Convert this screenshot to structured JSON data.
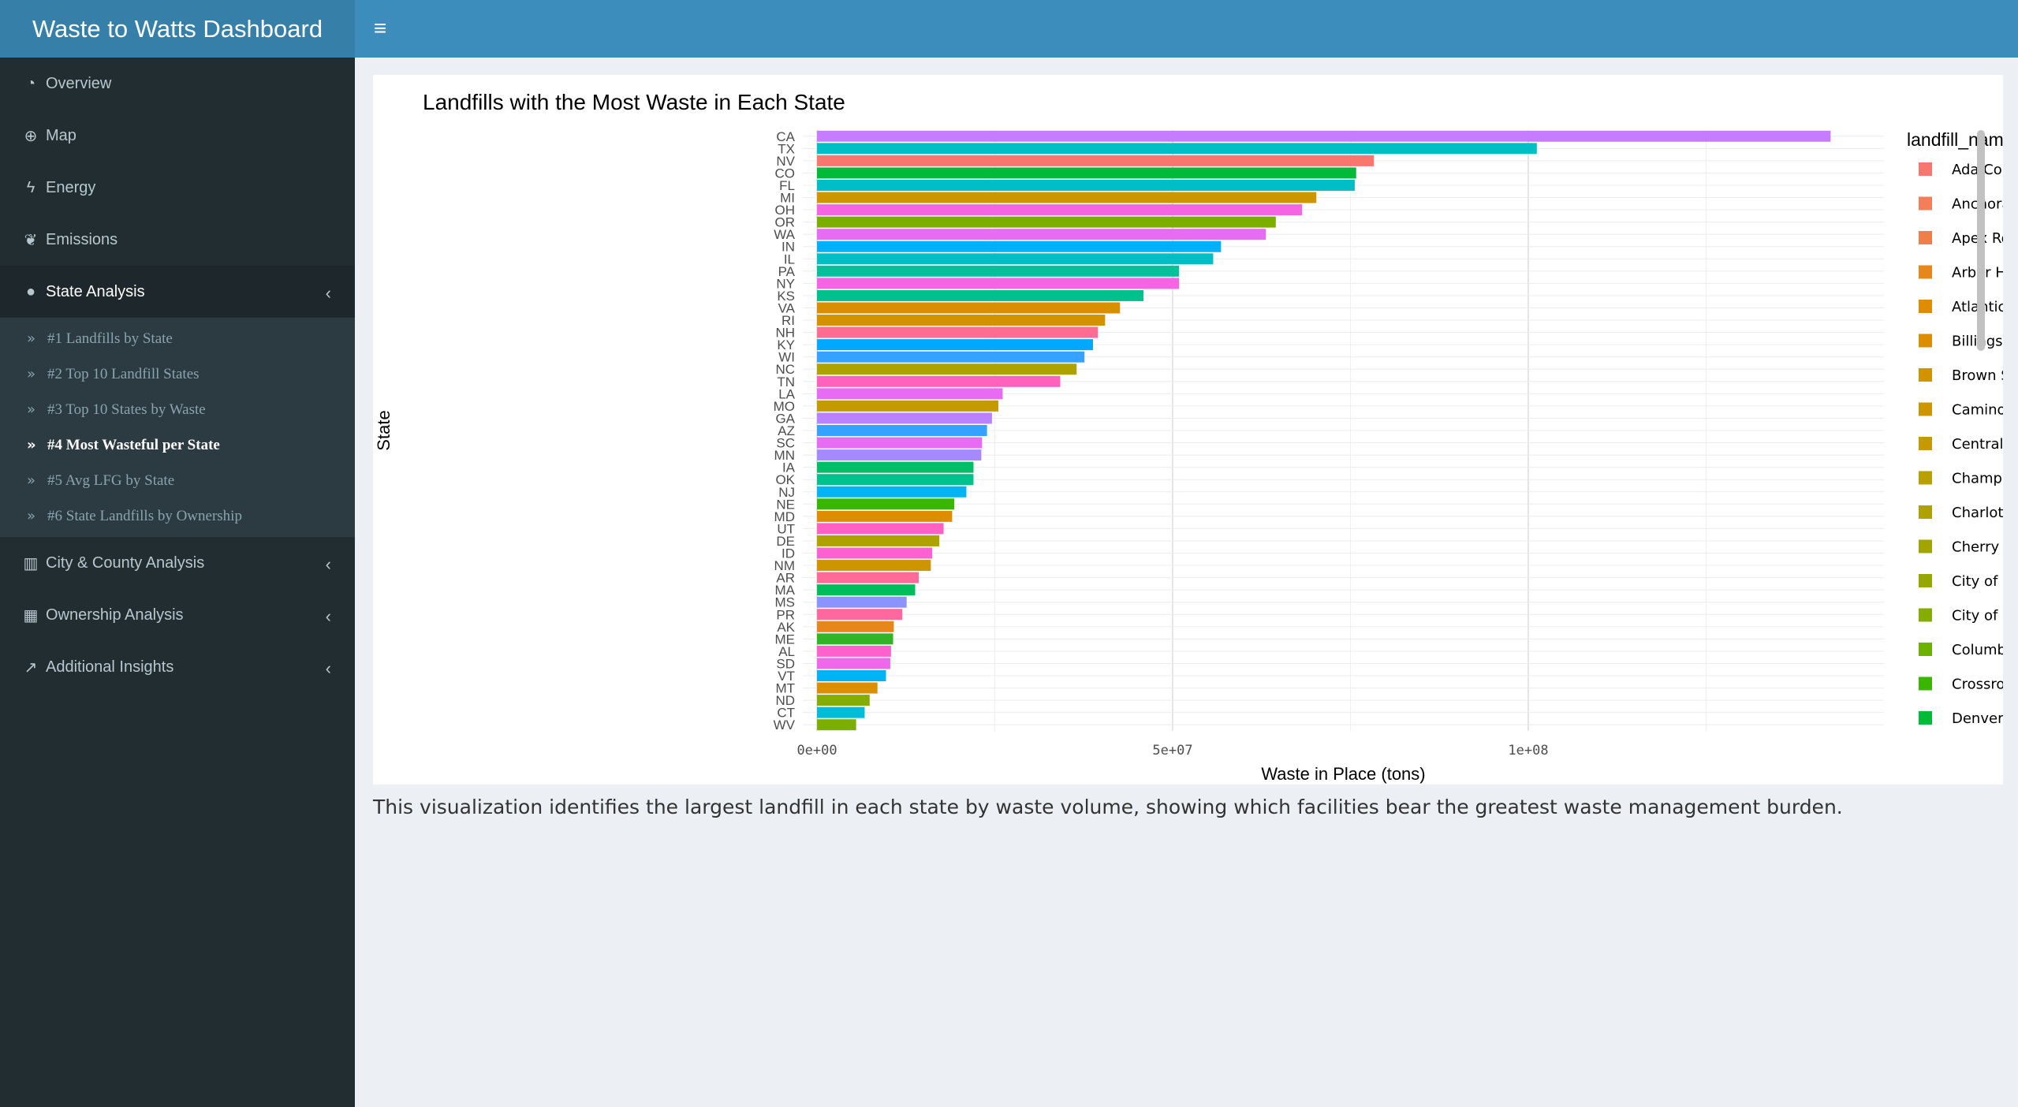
{
  "app": {
    "title": "Waste to Watts Dashboard",
    "toggle_icon": "hamburger-icon",
    "accent_color": "#3c8dbc"
  },
  "sidebar": {
    "items": [
      {
        "id": "overview",
        "label": "Overview",
        "icon": "tachometer-icon",
        "glyph": "◔"
      },
      {
        "id": "map",
        "label": "Map",
        "icon": "globe-icon",
        "glyph": "⊕"
      },
      {
        "id": "energy",
        "label": "Energy",
        "icon": "bolt-icon",
        "glyph": "ϟ"
      },
      {
        "id": "emissions",
        "label": "Emissions",
        "icon": "leaf-icon",
        "glyph": "❦"
      }
    ],
    "state_analysis": {
      "label": "State Analysis",
      "icon": "map-marker-icon",
      "glyph": "●"
    },
    "sub_items": [
      {
        "label": "#1 Landfills by State",
        "active": false
      },
      {
        "label": "#2 Top 10 Landfill States",
        "active": false
      },
      {
        "label": "#3 Top 10 States by Waste",
        "active": false
      },
      {
        "label": "#4 Most Wasteful per State",
        "active": true
      },
      {
        "label": "#5 Avg LFG by State",
        "active": false
      },
      {
        "label": "#6 State Landfills by Ownership",
        "active": false
      }
    ],
    "bottom_items": [
      {
        "id": "city",
        "label": "City & County Analysis",
        "icon": "city-icon",
        "glyph": "▥"
      },
      {
        "id": "ownership",
        "label": "Ownership Analysis",
        "icon": "building-icon",
        "glyph": "▦"
      },
      {
        "id": "insights",
        "label": "Additional Insights",
        "icon": "line-chart-icon",
        "glyph": "↗"
      }
    ]
  },
  "description": "This visualization identifies the largest landfill in each state by waste volume, showing which facilities bear the greatest waste management burden.",
  "chart_data": {
    "type": "bar",
    "orientation": "horizontal",
    "title": "Landfills with the Most Waste in Each State",
    "xlabel": "Waste in Place (tons)",
    "ylabel": "State",
    "xlim": [
      -2000000,
      150000000
    ],
    "x_ticks": [
      0,
      50000000,
      100000000
    ],
    "x_tick_labels": [
      "0e+00",
      "5e+07",
      "1e+08"
    ],
    "grid": true,
    "legend_title": "landfill_name",
    "legend_position": "right",
    "categories": [
      "CA",
      "TX",
      "NV",
      "CO",
      "FL",
      "MI",
      "OH",
      "OR",
      "WA",
      "IN",
      "IL",
      "PA",
      "NY",
      "KS",
      "VA",
      "RI",
      "NH",
      "KY",
      "WI",
      "NC",
      "TN",
      "LA",
      "MO",
      "GA",
      "AZ",
      "SC",
      "MN",
      "IA",
      "OK",
      "NJ",
      "NE",
      "MD",
      "UT",
      "DE",
      "ID",
      "NM",
      "AR",
      "MA",
      "MS",
      "PR",
      "AK",
      "ME",
      "AL",
      "SD",
      "VT",
      "MT",
      "ND",
      "CT",
      "WV"
    ],
    "values": [
      142500000,
      101200000,
      78300000,
      75800000,
      75600000,
      70200000,
      68200000,
      64500000,
      63100000,
      56800000,
      55700000,
      50900000,
      50900000,
      45900000,
      42600000,
      40500000,
      39500000,
      38800000,
      37600000,
      36500000,
      34200000,
      26100000,
      25500000,
      24600000,
      23900000,
      23200000,
      23100000,
      22000000,
      22000000,
      21000000,
      19300000,
      19000000,
      17800000,
      17200000,
      16200000,
      16000000,
      14300000,
      13800000,
      12600000,
      12000000,
      10800000,
      10700000,
      10400000,
      10300000,
      9700000,
      8500000,
      7400000,
      6700000,
      5500000
    ],
    "colors": [
      "#c77cff",
      "#00bfc4",
      "#f8766d",
      "#00ba38",
      "#00bfc4",
      "#cd9600",
      "#f564e3",
      "#7cae00",
      "#e76bf3",
      "#00b0f6",
      "#00bfc4",
      "#00c19a",
      "#f564e3",
      "#00c08b",
      "#d89000",
      "#d39200",
      "#ff6c91",
      "#00a9ff",
      "#35a2ff",
      "#aea200",
      "#ff62bc",
      "#e76bf3",
      "#c49a00",
      "#b983ff",
      "#35a2ff",
      "#e76bf3",
      "#a58aff",
      "#00be67",
      "#00c08b",
      "#00b4ef",
      "#39b600",
      "#de8c00",
      "#ff61c3",
      "#aea200",
      "#fd61d1",
      "#cd9600",
      "#ff6a98",
      "#00bd5c",
      "#8b93ff",
      "#ff689f",
      "#e7861b",
      "#31b425",
      "#ff61cc",
      "#ef67eb",
      "#00b3f4",
      "#db8e00",
      "#85ad00",
      "#00bcd8",
      "#7cae00"
    ],
    "legend": [
      {
        "name": "Ada County Landfill",
        "color": "#f8766d"
      },
      {
        "name": "Anchorage Regional Landfill",
        "color": "#f47d5a"
      },
      {
        "name": "Apex Regional LF",
        "color": "#ef7f46"
      },
      {
        "name": "Arbor Hills Landfill Inc.",
        "color": "#e7861b"
      },
      {
        "name": "Atlantic Waste Disposal Inc.",
        "color": "#de8c00"
      },
      {
        "name": "Billings City Landfill",
        "color": "#db8e00"
      },
      {
        "name": "Brown Station Road Sanitary Landfill",
        "color": "#d39200"
      },
      {
        "name": "Camino Real Landfill",
        "color": "#cd9600"
      },
      {
        "name": "Central LF",
        "color": "#c49a00"
      },
      {
        "name": "Champ Landfill",
        "color": "#b8a000"
      },
      {
        "name": "Charlotte Motor Speedway Landfill V",
        "color": "#aea200"
      },
      {
        "name": "Cherry Island Landfill",
        "color": "#a2a500"
      },
      {
        "name": "City of Charleston Landfill",
        "color": "#94a800"
      },
      {
        "name": "City of Fargo Landfill",
        "color": "#85ad00"
      },
      {
        "name": "Columbia Ridge LF",
        "color": "#6bb100"
      },
      {
        "name": "Crossroads LF",
        "color": "#39b600"
      },
      {
        "name": "Denver Arapahoe Disposal Site (DADS)",
        "color": "#00ba38"
      }
    ]
  }
}
